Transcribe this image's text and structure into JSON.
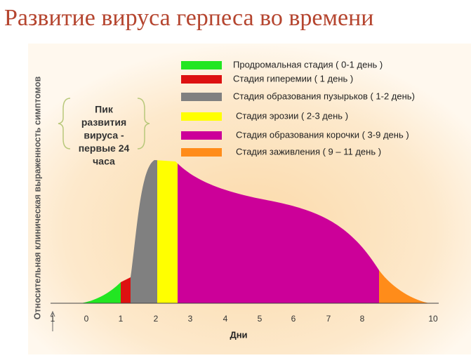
{
  "title": "Развитие вируса герпеса во времени",
  "y_axis_label": "Относительная клиническая выраженность симптомов",
  "x_axis_label": "Дни",
  "x_tick_labels": [
    "1",
    "0",
    "1",
    "2",
    "3",
    "4",
    "5",
    "6",
    "7",
    "8",
    "10"
  ],
  "callout": [
    "Пик",
    "развития",
    "вируса  -",
    "первые 24",
    "часа"
  ],
  "legend": [
    {
      "label": "Продромальная стадия ( 0-1 день )",
      "color": "#22e622"
    },
    {
      "label": "Стадия гиперемии ( 1 день )",
      "color": "#dd1111"
    },
    {
      "label": "Стадия образования пузырьков ( 1-2 день)",
      "color": "#808080"
    },
    {
      "label": "Стадия эрозии  ( 2-3 день )",
      "color": "#ffff00"
    },
    {
      "label": "Стадия образования корочки ( 3-9 день )",
      "color": "#cc0099"
    },
    {
      "label": "Стадия заживления ( 9 – 11 день )",
      "color": "#ff8c1a"
    }
  ]
}
